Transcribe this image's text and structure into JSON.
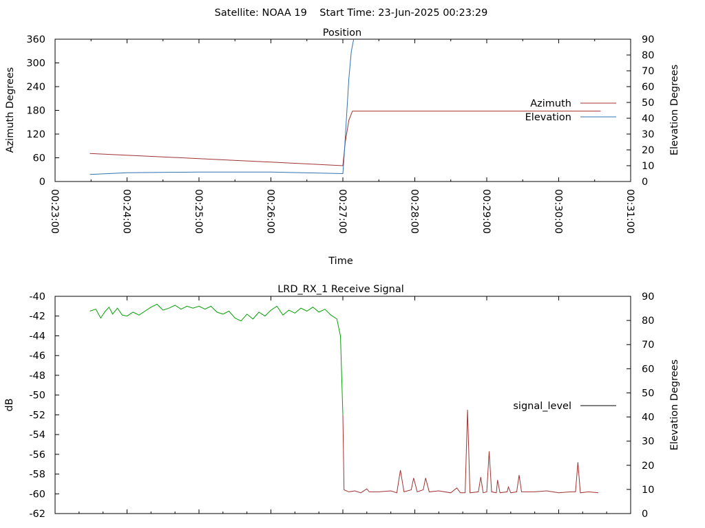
{
  "header": "Satellite: NOAA 19    Start Time: 23-Jun-2025 00:23:29",
  "chart_data": [
    {
      "type": "line",
      "title": "Position",
      "xlabel": "Time",
      "ylabel": "Azimuth Degrees",
      "y2label": "Elevation Degrees",
      "xlim": [
        "00:23:00",
        "00:31:00"
      ],
      "ylim": [
        0,
        360
      ],
      "y2lim": [
        0,
        90
      ],
      "xticks": [
        "00:23:00",
        "00:24:00",
        "00:25:00",
        "00:26:00",
        "00:27:00",
        "00:28:00",
        "00:29:00",
        "00:30:00",
        "00:31:00"
      ],
      "yticks": [
        "0",
        "60",
        "120",
        "180",
        "240",
        "300",
        "360"
      ],
      "y2ticks": [
        "0",
        "10",
        "20",
        "30",
        "40",
        "50",
        "60",
        "70",
        "80",
        "90"
      ],
      "legend_position": "right",
      "series": [
        {
          "name": "Azimuth",
          "axis": "y",
          "color": "#a03030",
          "points": [
            [
              "00:23:29",
              71
            ],
            [
              "00:25:00",
              58
            ],
            [
              "00:26:00",
              49
            ],
            [
              "00:27:00",
              40
            ],
            [
              "00:27:02",
              100
            ],
            [
              "00:27:05",
              155
            ],
            [
              "00:27:08",
              178
            ],
            [
              "00:30:35",
              178
            ]
          ]
        },
        {
          "name": "Elevation",
          "axis": "y2",
          "color": "#3070b0",
          "points": [
            [
              "00:23:29",
              4.5
            ],
            [
              "00:24:00",
              5.5
            ],
            [
              "00:25:00",
              6
            ],
            [
              "00:26:00",
              6
            ],
            [
              "00:27:00",
              5
            ],
            [
              "00:27:01",
              15
            ],
            [
              "00:27:03",
              40
            ],
            [
              "00:27:05",
              65
            ],
            [
              "00:27:07",
              82
            ],
            [
              "00:27:09",
              90
            ]
          ]
        }
      ]
    },
    {
      "type": "line",
      "title": "LRD_RX_1 Receive Signal",
      "ylabel": "dB",
      "y2label": "Elevation Degrees",
      "xlim": [
        "00:23:00",
        "00:31:00"
      ],
      "ylim": [
        -62,
        -40
      ],
      "y2lim": [
        0,
        90
      ],
      "yticks": [
        "-40",
        "-42",
        "-44",
        "-46",
        "-48",
        "-50",
        "-52",
        "-54",
        "-56",
        "-58",
        "-60",
        "-62"
      ],
      "y2ticks": [
        "0",
        "10",
        "20",
        "30",
        "40",
        "50",
        "60",
        "70",
        "80",
        "90"
      ],
      "legend_position": "right",
      "series": [
        {
          "name": "signal_level",
          "color_before_drop": "#00a000",
          "color_after_drop": "#a03030",
          "points": [
            [
              "00:23:29",
              -41.5
            ],
            [
              "00:23:34",
              -41.3
            ],
            [
              "00:23:38",
              -42.2
            ],
            [
              "00:23:42",
              -41.5
            ],
            [
              "00:23:45",
              -41.1
            ],
            [
              "00:23:48",
              -41.8
            ],
            [
              "00:23:52",
              -41.2
            ],
            [
              "00:23:56",
              -41.9
            ],
            [
              "00:24:00",
              -42.0
            ],
            [
              "00:24:05",
              -41.6
            ],
            [
              "00:24:10",
              -41.9
            ],
            [
              "00:24:15",
              -41.5
            ],
            [
              "00:24:20",
              -41.1
            ],
            [
              "00:24:25",
              -40.8
            ],
            [
              "00:24:30",
              -41.4
            ],
            [
              "00:24:35",
              -41.2
            ],
            [
              "00:24:40",
              -40.9
            ],
            [
              "00:24:45",
              -41.3
            ],
            [
              "00:24:50",
              -41.0
            ],
            [
              "00:24:55",
              -41.2
            ],
            [
              "00:25:00",
              -41.0
            ],
            [
              "00:25:05",
              -41.3
            ],
            [
              "00:25:10",
              -41.0
            ],
            [
              "00:25:15",
              -41.6
            ],
            [
              "00:25:20",
              -41.8
            ],
            [
              "00:25:25",
              -41.5
            ],
            [
              "00:25:30",
              -42.2
            ],
            [
              "00:25:35",
              -42.5
            ],
            [
              "00:25:40",
              -41.8
            ],
            [
              "00:25:45",
              -42.3
            ],
            [
              "00:25:50",
              -41.6
            ],
            [
              "00:25:55",
              -42.0
            ],
            [
              "00:26:00",
              -41.4
            ],
            [
              "00:26:05",
              -41.0
            ],
            [
              "00:26:10",
              -41.9
            ],
            [
              "00:26:15",
              -41.4
            ],
            [
              "00:26:20",
              -41.7
            ],
            [
              "00:26:25",
              -41.2
            ],
            [
              "00:26:30",
              -41.5
            ],
            [
              "00:26:35",
              -41.1
            ],
            [
              "00:26:40",
              -41.6
            ],
            [
              "00:26:45",
              -41.3
            ],
            [
              "00:26:50",
              -41.9
            ],
            [
              "00:26:55",
              -42.3
            ],
            [
              "00:26:58",
              -44.0
            ],
            [
              "00:27:00",
              -52.0
            ],
            [
              "00:27:01",
              -59.6
            ],
            [
              "00:27:05",
              -59.8
            ],
            [
              "00:27:10",
              -59.7
            ],
            [
              "00:27:15",
              -59.9
            ],
            [
              "00:27:20",
              -59.5
            ],
            [
              "00:27:22",
              -59.8
            ],
            [
              "00:27:30",
              -59.8
            ],
            [
              "00:27:40",
              -59.7
            ],
            [
              "00:27:45",
              -59.9
            ],
            [
              "00:27:48",
              -57.6
            ],
            [
              "00:27:51",
              -59.8
            ],
            [
              "00:27:57",
              -59.6
            ],
            [
              "00:27:59",
              -58.4
            ],
            [
              "00:28:02",
              -59.8
            ],
            [
              "00:28:07",
              -59.6
            ],
            [
              "00:28:09",
              -58.4
            ],
            [
              "00:28:12",
              -59.8
            ],
            [
              "00:28:20",
              -59.7
            ],
            [
              "00:28:30",
              -59.9
            ],
            [
              "00:28:35",
              -59.4
            ],
            [
              "00:28:38",
              -59.9
            ],
            [
              "00:28:42",
              -59.9
            ],
            [
              "00:28:44",
              -51.5
            ],
            [
              "00:28:46",
              -59.9
            ],
            [
              "00:28:53",
              -59.8
            ],
            [
              "00:28:55",
              -58.3
            ],
            [
              "00:28:57",
              -59.9
            ],
            [
              "00:29:00",
              -59.8
            ],
            [
              "00:29:02",
              -55.7
            ],
            [
              "00:29:04",
              -59.8
            ],
            [
              "00:29:08",
              -59.9
            ],
            [
              "00:29:09",
              -58.6
            ],
            [
              "00:29:11",
              -59.9
            ],
            [
              "00:29:17",
              -59.8
            ],
            [
              "00:29:18",
              -59.3
            ],
            [
              "00:29:20",
              -59.9
            ],
            [
              "00:29:25",
              -59.8
            ],
            [
              "00:29:27",
              -58.1
            ],
            [
              "00:29:29",
              -59.8
            ],
            [
              "00:29:40",
              -59.8
            ],
            [
              "00:29:50",
              -59.7
            ],
            [
              "00:30:00",
              -59.9
            ],
            [
              "00:30:10",
              -59.8
            ],
            [
              "00:30:14",
              -59.8
            ],
            [
              "00:30:16",
              -56.8
            ],
            [
              "00:30:18",
              -59.9
            ],
            [
              "00:30:25",
              -59.8
            ],
            [
              "00:30:33",
              -59.9
            ]
          ]
        }
      ]
    }
  ]
}
